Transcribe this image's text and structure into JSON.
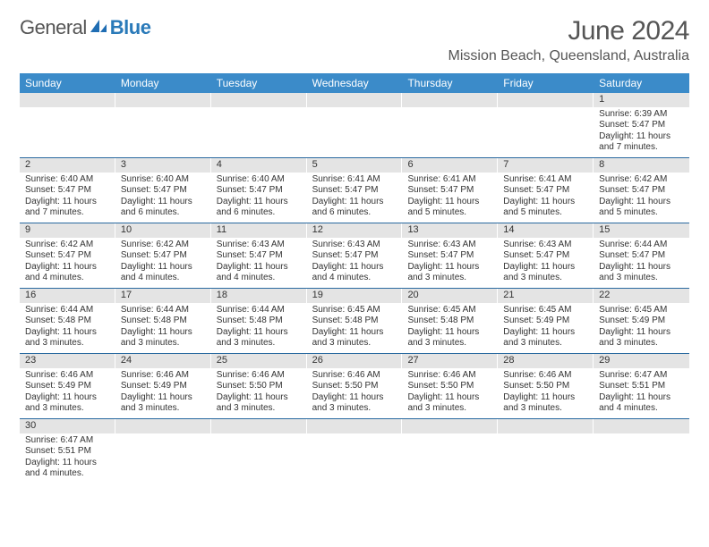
{
  "logo": {
    "text1": "General",
    "text2": "Blue"
  },
  "title": "June 2024",
  "location": "Mission Beach, Queensland, Australia",
  "colors": {
    "header_bg": "#3b8bc9",
    "header_text": "#ffffff",
    "daynum_bg": "#e4e4e4",
    "row_border": "#2a6aa0",
    "body_text": "#333333",
    "title_text": "#555555"
  },
  "weekdays": [
    "Sunday",
    "Monday",
    "Tuesday",
    "Wednesday",
    "Thursday",
    "Friday",
    "Saturday"
  ],
  "weeks": [
    [
      null,
      null,
      null,
      null,
      null,
      null,
      {
        "n": "1",
        "sr": "6:39 AM",
        "ss": "5:47 PM",
        "dl": "11 hours and 7 minutes."
      }
    ],
    [
      {
        "n": "2",
        "sr": "6:40 AM",
        "ss": "5:47 PM",
        "dl": "11 hours and 7 minutes."
      },
      {
        "n": "3",
        "sr": "6:40 AM",
        "ss": "5:47 PM",
        "dl": "11 hours and 6 minutes."
      },
      {
        "n": "4",
        "sr": "6:40 AM",
        "ss": "5:47 PM",
        "dl": "11 hours and 6 minutes."
      },
      {
        "n": "5",
        "sr": "6:41 AM",
        "ss": "5:47 PM",
        "dl": "11 hours and 6 minutes."
      },
      {
        "n": "6",
        "sr": "6:41 AM",
        "ss": "5:47 PM",
        "dl": "11 hours and 5 minutes."
      },
      {
        "n": "7",
        "sr": "6:41 AM",
        "ss": "5:47 PM",
        "dl": "11 hours and 5 minutes."
      },
      {
        "n": "8",
        "sr": "6:42 AM",
        "ss": "5:47 PM",
        "dl": "11 hours and 5 minutes."
      }
    ],
    [
      {
        "n": "9",
        "sr": "6:42 AM",
        "ss": "5:47 PM",
        "dl": "11 hours and 4 minutes."
      },
      {
        "n": "10",
        "sr": "6:42 AM",
        "ss": "5:47 PM",
        "dl": "11 hours and 4 minutes."
      },
      {
        "n": "11",
        "sr": "6:43 AM",
        "ss": "5:47 PM",
        "dl": "11 hours and 4 minutes."
      },
      {
        "n": "12",
        "sr": "6:43 AM",
        "ss": "5:47 PM",
        "dl": "11 hours and 4 minutes."
      },
      {
        "n": "13",
        "sr": "6:43 AM",
        "ss": "5:47 PM",
        "dl": "11 hours and 3 minutes."
      },
      {
        "n": "14",
        "sr": "6:43 AM",
        "ss": "5:47 PM",
        "dl": "11 hours and 3 minutes."
      },
      {
        "n": "15",
        "sr": "6:44 AM",
        "ss": "5:47 PM",
        "dl": "11 hours and 3 minutes."
      }
    ],
    [
      {
        "n": "16",
        "sr": "6:44 AM",
        "ss": "5:48 PM",
        "dl": "11 hours and 3 minutes."
      },
      {
        "n": "17",
        "sr": "6:44 AM",
        "ss": "5:48 PM",
        "dl": "11 hours and 3 minutes."
      },
      {
        "n": "18",
        "sr": "6:44 AM",
        "ss": "5:48 PM",
        "dl": "11 hours and 3 minutes."
      },
      {
        "n": "19",
        "sr": "6:45 AM",
        "ss": "5:48 PM",
        "dl": "11 hours and 3 minutes."
      },
      {
        "n": "20",
        "sr": "6:45 AM",
        "ss": "5:48 PM",
        "dl": "11 hours and 3 minutes."
      },
      {
        "n": "21",
        "sr": "6:45 AM",
        "ss": "5:49 PM",
        "dl": "11 hours and 3 minutes."
      },
      {
        "n": "22",
        "sr": "6:45 AM",
        "ss": "5:49 PM",
        "dl": "11 hours and 3 minutes."
      }
    ],
    [
      {
        "n": "23",
        "sr": "6:46 AM",
        "ss": "5:49 PM",
        "dl": "11 hours and 3 minutes."
      },
      {
        "n": "24",
        "sr": "6:46 AM",
        "ss": "5:49 PM",
        "dl": "11 hours and 3 minutes."
      },
      {
        "n": "25",
        "sr": "6:46 AM",
        "ss": "5:50 PM",
        "dl": "11 hours and 3 minutes."
      },
      {
        "n": "26",
        "sr": "6:46 AM",
        "ss": "5:50 PM",
        "dl": "11 hours and 3 minutes."
      },
      {
        "n": "27",
        "sr": "6:46 AM",
        "ss": "5:50 PM",
        "dl": "11 hours and 3 minutes."
      },
      {
        "n": "28",
        "sr": "6:46 AM",
        "ss": "5:50 PM",
        "dl": "11 hours and 3 minutes."
      },
      {
        "n": "29",
        "sr": "6:47 AM",
        "ss": "5:51 PM",
        "dl": "11 hours and 4 minutes."
      }
    ],
    [
      {
        "n": "30",
        "sr": "6:47 AM",
        "ss": "5:51 PM",
        "dl": "11 hours and 4 minutes."
      },
      null,
      null,
      null,
      null,
      null,
      null
    ]
  ],
  "labels": {
    "sunrise": "Sunrise:",
    "sunset": "Sunset:",
    "daylight": "Daylight:"
  }
}
